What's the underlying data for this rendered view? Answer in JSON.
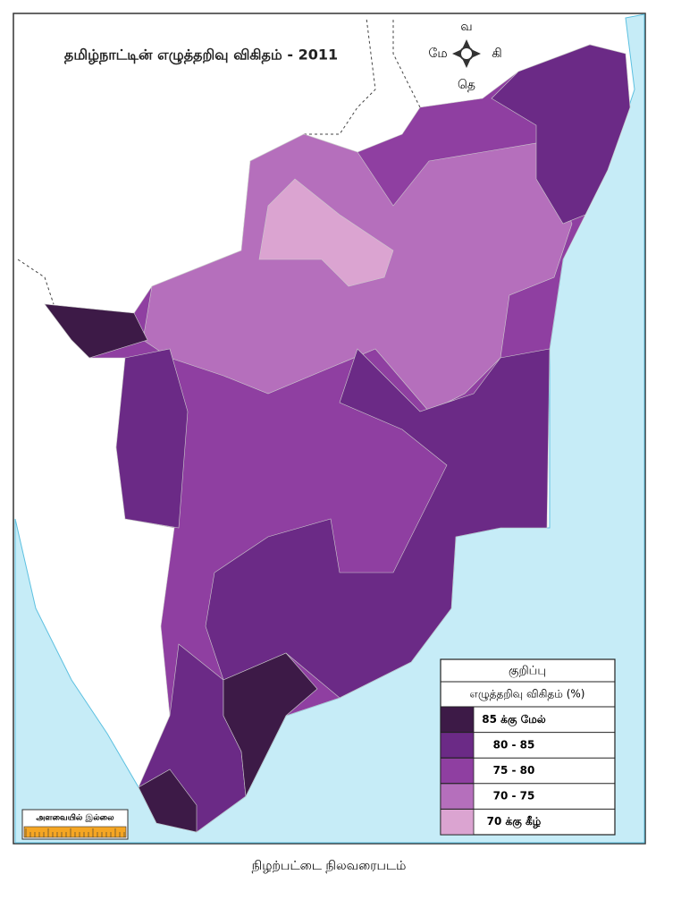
{
  "title": "தமிழ்நாட்டின் எழுத்தறிவு விகிதம் - 2011",
  "compass": {
    "north": "வ",
    "west": "மே",
    "east": "கி",
    "south": "தெ"
  },
  "legend": {
    "title": "குறிப்பு",
    "subtitle": "எழுத்தறிவு விகிதம் (%)",
    "items": [
      {
        "label": "85 க்கு மேல்",
        "color": "#3d1a47"
      },
      {
        "label": "80 - 85",
        "color": "#6b2a86"
      },
      {
        "label": "75 - 80",
        "color": "#8f3fa1"
      },
      {
        "label": "70 - 75",
        "color": "#b56fbc"
      },
      {
        "label": "70 க்கு கீழ்",
        "color": "#dba4d1"
      }
    ]
  },
  "scale_note": "அளவையில் இல்லை",
  "caption": "நிழற்பட்டை நிலவரைபடம்"
}
